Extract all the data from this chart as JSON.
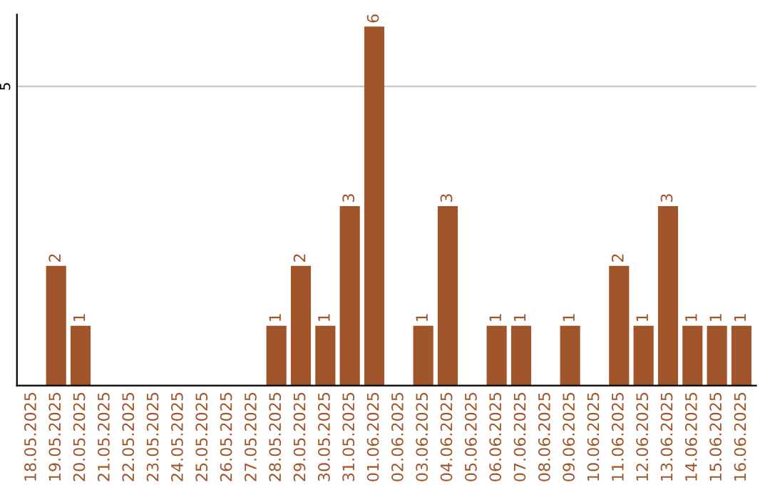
{
  "chart_data": {
    "type": "bar",
    "categories": [
      "18.05.2025",
      "19.05.2025",
      "20.05.2025",
      "21.05.2025",
      "22.05.2025",
      "23.05.2025",
      "24.05.2025",
      "25.05.2025",
      "26.05.2025",
      "27.05.2025",
      "28.05.2025",
      "29.05.2025",
      "30.05.2025",
      "31.05.2025",
      "01.06.2025",
      "02.06.2025",
      "03.06.2025",
      "04.06.2025",
      "05.06.2025",
      "06.06.2025",
      "07.06.2025",
      "08.06.2025",
      "09.06.2025",
      "10.06.2025",
      "11.06.2025",
      "12.06.2025",
      "13.06.2025",
      "14.06.2025",
      "15.06.2025",
      "16.06.2025"
    ],
    "values": [
      0,
      2,
      1,
      0,
      0,
      0,
      0,
      0,
      0,
      0,
      1,
      2,
      1,
      3,
      6,
      0,
      1,
      3,
      0,
      1,
      1,
      0,
      1,
      0,
      2,
      1,
      3,
      1,
      1,
      1
    ],
    "value_labels": [
      null,
      "2",
      "1",
      null,
      null,
      null,
      null,
      null,
      null,
      null,
      "1",
      "2",
      "1",
      "3",
      "6",
      null,
      "1",
      "3",
      null,
      "1",
      "1",
      null,
      "1",
      null,
      "2",
      "1",
      "3",
      "1",
      "1",
      "1"
    ],
    "color": "#a0552a",
    "ylim": [
      0,
      6.2
    ],
    "yticks": [
      5
    ],
    "grid": "y"
  }
}
